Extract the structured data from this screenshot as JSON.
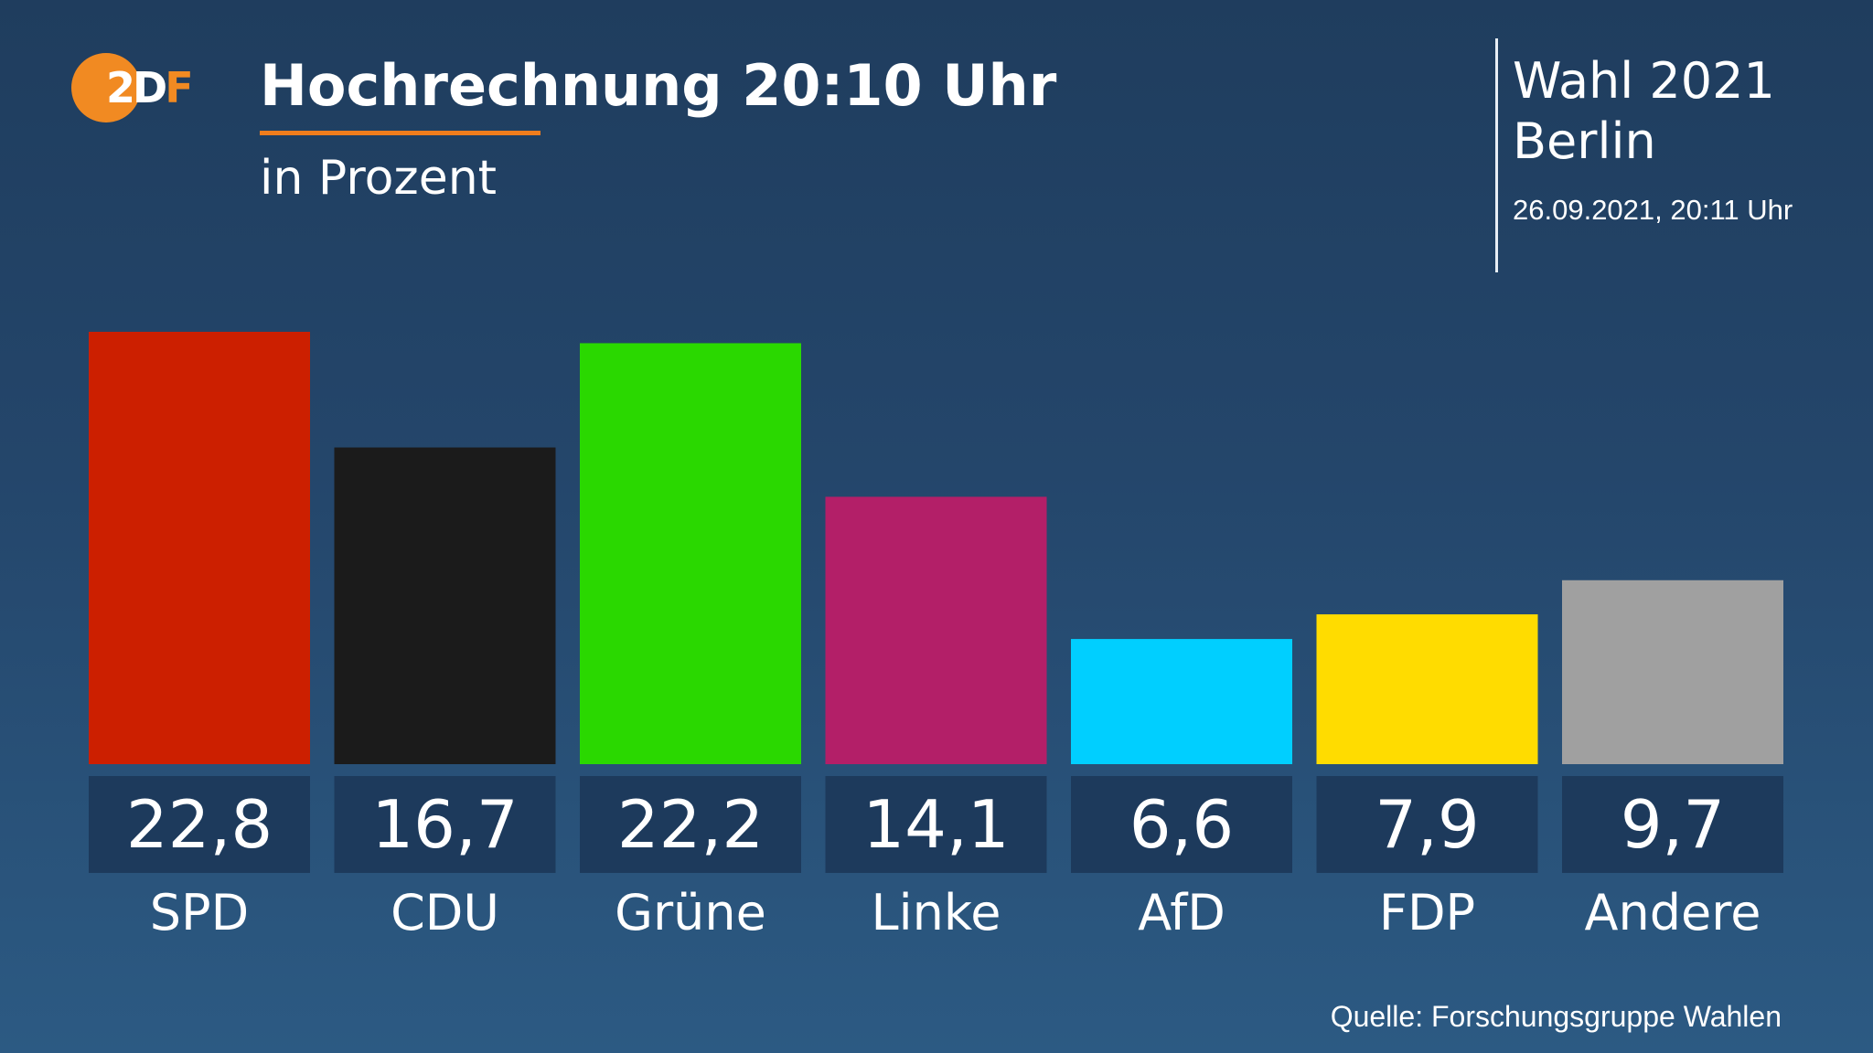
{
  "header": {
    "logo_text_1": "2D",
    "logo_text_2": "F",
    "title": "Hochrechnung 20:10 Uhr",
    "subtitle": "in Prozent",
    "election_line1": "Wahl 2021",
    "election_line2": "Berlin",
    "timestamp": "26.09.2021, 20:11 Uhr"
  },
  "source": "Quelle: Forschungsgruppe Wahlen",
  "colors": {
    "accent": "#f18a22",
    "label_box": "#1d3a5c"
  },
  "chart_data": {
    "type": "bar",
    "title": "Hochrechnung 20:10 Uhr",
    "subtitle": "in Prozent",
    "xlabel": "",
    "ylabel": "",
    "ylim": [
      0,
      22.8
    ],
    "categories": [
      "SPD",
      "CDU",
      "Grüne",
      "Linke",
      "AfD",
      "FDP",
      "Andere"
    ],
    "values": [
      22.8,
      16.7,
      22.2,
      14.1,
      6.6,
      7.9,
      9.7
    ],
    "value_labels": [
      "22,8",
      "16,7",
      "22,2",
      "14,1",
      "6,6",
      "7,9",
      "9,7"
    ],
    "colors": [
      "#cc1f00",
      "#1b1b1b",
      "#2ad800",
      "#b31f68",
      "#00cfff",
      "#ffdc00",
      "#a0a0a0"
    ]
  }
}
